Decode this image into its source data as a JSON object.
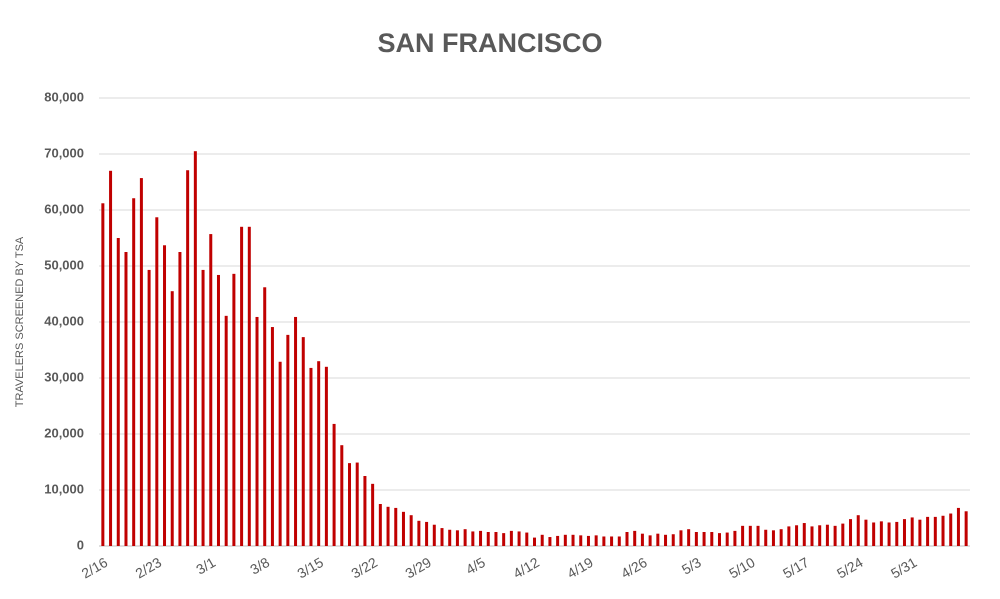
{
  "chart_data": {
    "type": "bar",
    "title": "SAN FRANCISCO",
    "y_label": "TRAVELERS SCREENED BY TSA",
    "categories": [
      "2/16",
      null,
      null,
      null,
      null,
      null,
      null,
      "2/23",
      null,
      null,
      null,
      null,
      null,
      null,
      "3/1",
      null,
      null,
      null,
      null,
      null,
      null,
      "3/8",
      null,
      null,
      null,
      null,
      null,
      null,
      "3/15",
      null,
      null,
      null,
      null,
      null,
      null,
      "3/22",
      null,
      null,
      null,
      null,
      null,
      null,
      "3/29",
      null,
      null,
      null,
      null,
      null,
      null,
      "4/5",
      null,
      null,
      null,
      null,
      null,
      null,
      "4/12",
      null,
      null,
      null,
      null,
      null,
      null,
      "4/19",
      null,
      null,
      null,
      null,
      null,
      null,
      "4/26",
      null,
      null,
      null,
      null,
      null,
      null,
      "5/3",
      null,
      null,
      null,
      null,
      null,
      null,
      "5/10",
      null,
      null,
      null,
      null,
      null,
      null,
      "5/17",
      null,
      null,
      null,
      null,
      null,
      null,
      "5/24",
      null,
      null,
      null,
      null,
      null,
      null,
      "5/31",
      null,
      null,
      null,
      null,
      null,
      null,
      null
    ],
    "values": [
      61200,
      67000,
      55000,
      52500,
      62100,
      65700,
      49300,
      58700,
      53700,
      45500,
      52500,
      67100,
      70500,
      49300,
      55700,
      48400,
      41100,
      48600,
      57000,
      57000,
      40900,
      46200,
      39100,
      32900,
      37700,
      40900,
      37300,
      31800,
      33000,
      32000,
      21800,
      18000,
      14800,
      14900,
      12500,
      11100,
      7500,
      7000,
      6800,
      6100,
      5500,
      4500,
      4300,
      3800,
      3200,
      2900,
      2800,
      3000,
      2600,
      2700,
      2500,
      2500,
      2300,
      2700,
      2600,
      2400,
      1500,
      2000,
      1600,
      1800,
      2000,
      2000,
      1900,
      1800,
      1900,
      1700,
      1700,
      1700,
      2500,
      2700,
      2200,
      1900,
      2200,
      2000,
      2100,
      2800,
      3000,
      2500,
      2500,
      2500,
      2300,
      2400,
      2700,
      3600,
      3600,
      3600,
      2900,
      2800,
      3000,
      3500,
      3700,
      4100,
      3500,
      3700,
      3800,
      3600,
      4000,
      4800,
      5500,
      4700,
      4200,
      4400,
      4200,
      4300,
      4800,
      5100,
      4700,
      5200,
      5200,
      5400,
      5800,
      6800,
      6200
    ],
    "color": "#c00000",
    "ylim": [
      0,
      80000
    ],
    "yticks": [
      0,
      {
        "value": 10000,
        "label": "10,000"
      },
      {
        "value": 20000,
        "label": "20,000"
      },
      {
        "value": 30000,
        "label": "30,000"
      },
      {
        "value": 40000,
        "label": "40,000"
      },
      {
        "value": 50000,
        "label": "50,000"
      },
      {
        "value": 60000,
        "label": "60,000"
      },
      {
        "value": 70000,
        "label": "70,000"
      },
      {
        "value": 80000,
        "label": "80,000"
      }
    ],
    "grid": true
  }
}
